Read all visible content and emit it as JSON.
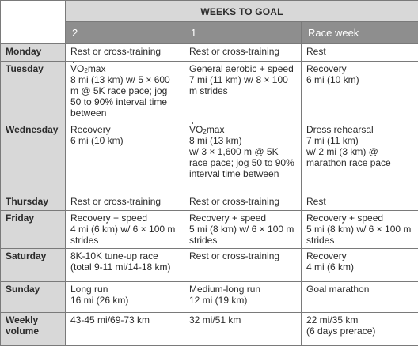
{
  "header": {
    "group_label": "WEEKS TO GOAL",
    "columns": [
      "2",
      "1",
      "Race week"
    ]
  },
  "rows": [
    {
      "day": "Monday",
      "cells": [
        "Rest or cross-training",
        "Rest or cross-training",
        "Rest"
      ]
    },
    {
      "day": "Tuesday",
      "cells": [
        {
          "vo2": true,
          "rest": "max\n8 mi (13 km) w/ 5 × 600 m @ 5K race pace; jog 50 to 90% interval time between"
        },
        "General aerobic + speed\n7 mi (11 km) w/ 8 × 100 m strides",
        "Recovery\n6 mi (10 km)"
      ]
    },
    {
      "day": "Wednesday",
      "cells": [
        "Recovery\n6 mi (10 km)",
        {
          "vo2": true,
          "rest": "max\n8 mi (13 km)\nw/ 3 × 1,600 m @ 5K race pace; jog 50 to 90% interval time between"
        },
        "Dress rehearsal\n7 mi (11 km)\nw/ 2 mi (3 km) @ marathon race pace"
      ]
    },
    {
      "day": "Thursday",
      "cells": [
        "Rest or cross-training",
        "Rest or cross-training",
        "Rest"
      ]
    },
    {
      "day": "Friday",
      "cells": [
        "Recovery + speed\n4 mi (6 km) w/ 6 × 100 m strides",
        "Recovery + speed\n5 mi (8 km) w/ 6 × 100 m strides",
        "Recovery + speed\n5 mi (8 km) w/ 6 × 100 m strides"
      ]
    },
    {
      "day": "Saturday",
      "cells": [
        "8K-10K tune-up race\n(total 9-11 mi/14-18 km)",
        "Rest or cross-training",
        "Recovery\n4 mi (6 km)"
      ]
    },
    {
      "day": "Sunday",
      "cells": [
        "Long run\n16 mi (26 km)",
        "Medium-long run\n12 mi (19 km)",
        "Goal marathon"
      ]
    },
    {
      "day": "Weekly\nvolume",
      "cells": [
        "43-45 mi/69-73 km",
        "32 mi/51 km",
        "22 mi/35 km\n(6 days prerace)"
      ]
    }
  ]
}
